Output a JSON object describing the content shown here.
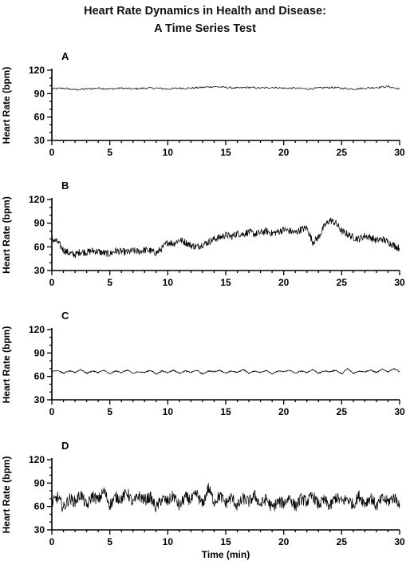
{
  "title_line1": "Heart Rate Dynamics in Health and Disease:",
  "title_line2": "A Time Series Test",
  "chart_data": [
    {
      "type": "line",
      "panel": "A",
      "ylabel": "Heart Rate (bpm)",
      "xlabel": "",
      "xlim": [
        0,
        30
      ],
      "ylim": [
        30,
        120
      ],
      "xticks": [
        0,
        5,
        10,
        15,
        20,
        25,
        30
      ],
      "yticks": [
        30,
        60,
        90,
        120
      ],
      "series": [
        {
          "x": [
            0,
            1,
            2,
            3,
            4,
            5,
            6,
            7,
            8,
            9,
            10,
            11,
            12,
            13,
            14,
            15,
            16,
            17,
            18,
            19,
            20,
            21,
            22,
            23,
            24,
            25,
            26,
            27,
            28,
            29,
            30
          ],
          "values": [
            96,
            97,
            95,
            96,
            97,
            96,
            97,
            96,
            97,
            97,
            96,
            97,
            97,
            98,
            99,
            98,
            97,
            98,
            97,
            98,
            97,
            97,
            96,
            97,
            98,
            97,
            96,
            97,
            98,
            99,
            96
          ]
        }
      ]
    },
    {
      "type": "line",
      "panel": "B",
      "ylabel": "Heart Rate (bpm)",
      "xlabel": "",
      "xlim": [
        0,
        30
      ],
      "ylim": [
        30,
        120
      ],
      "xticks": [
        0,
        5,
        10,
        15,
        20,
        25,
        30
      ],
      "yticks": [
        30,
        60,
        90,
        120
      ],
      "series": [
        {
          "x": [
            0,
            0.5,
            1,
            1.5,
            2,
            2.5,
            3,
            3.5,
            4,
            4.5,
            5,
            5.5,
            6,
            6.5,
            7,
            7.5,
            8,
            8.5,
            9,
            9.5,
            10,
            10.5,
            11,
            11.5,
            12,
            12.5,
            13,
            13.5,
            14,
            14.5,
            15,
            15.5,
            16,
            16.5,
            17,
            17.5,
            18,
            18.5,
            19,
            19.5,
            20,
            20.5,
            21,
            21.5,
            22,
            22.5,
            23,
            23.5,
            24,
            24.5,
            25,
            25.5,
            26,
            26.5,
            27,
            27.5,
            28,
            28.5,
            29,
            29.5,
            30
          ],
          "values": [
            70,
            66,
            56,
            52,
            50,
            54,
            53,
            55,
            54,
            52,
            51,
            55,
            54,
            53,
            55,
            54,
            56,
            55,
            52,
            58,
            66,
            64,
            69,
            66,
            62,
            60,
            63,
            66,
            70,
            72,
            75,
            73,
            77,
            76,
            79,
            76,
            78,
            80,
            77,
            79,
            82,
            80,
            78,
            82,
            84,
            66,
            72,
            86,
            94,
            90,
            80,
            76,
            72,
            70,
            74,
            72,
            68,
            70,
            66,
            62,
            58
          ]
        }
      ]
    },
    {
      "type": "line",
      "panel": "C",
      "ylabel": "Heart Rate (bpm)",
      "xlabel": "",
      "xlim": [
        0,
        30
      ],
      "ylim": [
        30,
        120
      ],
      "xticks": [
        0,
        5,
        10,
        15,
        20,
        25,
        30
      ],
      "yticks": [
        30,
        60,
        90,
        120
      ],
      "series": [
        {
          "x": [
            0,
            0.5,
            1,
            1.5,
            2,
            2.5,
            3,
            3.5,
            4,
            4.5,
            5,
            5.5,
            6,
            6.5,
            7,
            7.5,
            8,
            8.5,
            9,
            9.5,
            10,
            10.5,
            11,
            11.5,
            12,
            12.5,
            13,
            13.5,
            14,
            14.5,
            15,
            15.5,
            16,
            16.5,
            17,
            17.5,
            18,
            18.5,
            19,
            19.5,
            20,
            20.5,
            21,
            21.5,
            22,
            22.5,
            23,
            23.5,
            24,
            24.5,
            25,
            25.5,
            26,
            26.5,
            27,
            27.5,
            28,
            28.5,
            29,
            29.5,
            30
          ],
          "values": [
            66,
            68,
            64,
            67,
            65,
            69,
            64,
            67,
            65,
            68,
            63,
            67,
            65,
            68,
            64,
            66,
            65,
            68,
            63,
            67,
            65,
            68,
            64,
            67,
            65,
            68,
            63,
            67,
            66,
            68,
            64,
            67,
            65,
            69,
            64,
            67,
            65,
            68,
            63,
            67,
            66,
            68,
            64,
            67,
            65,
            69,
            64,
            67,
            66,
            68,
            63,
            70,
            64,
            67,
            66,
            68,
            65,
            69,
            66,
            70,
            66
          ]
        }
      ]
    },
    {
      "type": "line",
      "panel": "D",
      "ylabel": "Heart Rate (bpm)",
      "xlabel": "Time (min)",
      "xlim": [
        0,
        30
      ],
      "ylim": [
        30,
        120
      ],
      "xticks": [
        0,
        5,
        10,
        15,
        20,
        25,
        30
      ],
      "yticks": [
        30,
        60,
        90,
        120
      ],
      "series": [
        {
          "x": [
            0,
            0.5,
            1,
            1.5,
            2,
            2.5,
            3,
            3.5,
            4,
            4.5,
            5,
            5.5,
            6,
            6.5,
            7,
            7.5,
            8,
            8.5,
            9,
            9.5,
            10,
            10.5,
            11,
            11.5,
            12,
            12.5,
            13,
            13.5,
            14,
            14.5,
            15,
            15.5,
            16,
            16.5,
            17,
            17.5,
            18,
            18.5,
            19,
            19.5,
            20,
            20.5,
            21,
            21.5,
            22,
            22.5,
            23,
            23.5,
            24,
            24.5,
            25,
            25.5,
            26,
            26.5,
            27,
            27.5,
            28,
            28.5,
            29,
            29.5,
            30
          ],
          "values": [
            64,
            72,
            58,
            70,
            66,
            76,
            60,
            74,
            68,
            80,
            62,
            72,
            70,
            78,
            64,
            74,
            68,
            72,
            58,
            70,
            66,
            74,
            60,
            72,
            68,
            76,
            62,
            84,
            66,
            74,
            64,
            72,
            60,
            70,
            66,
            74,
            62,
            70,
            58,
            66,
            64,
            72,
            60,
            70,
            66,
            74,
            62,
            68,
            60,
            72,
            66,
            70,
            62,
            74,
            64,
            72,
            60,
            70,
            66,
            72,
            64
          ]
        }
      ]
    }
  ]
}
